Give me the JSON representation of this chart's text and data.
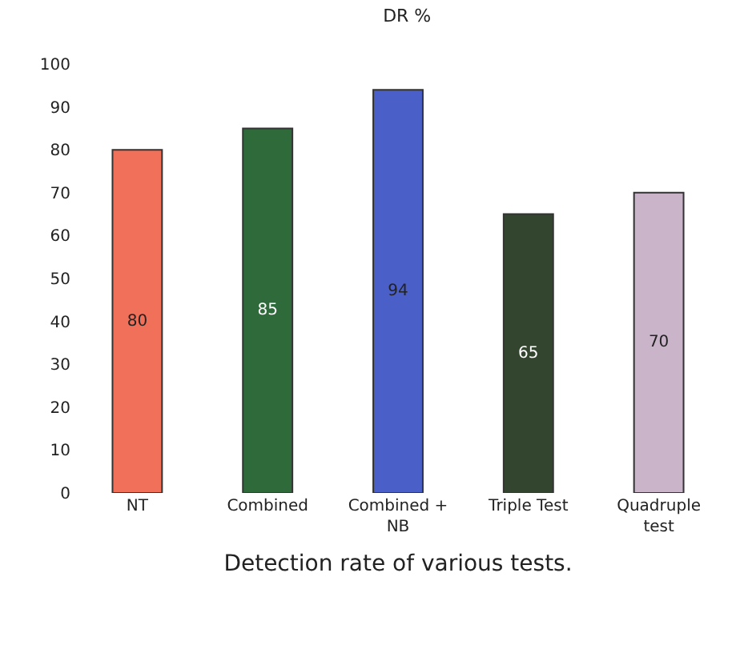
{
  "chart_data": {
    "type": "bar",
    "title": "DR %",
    "xlabel": "Detection rate of various tests.",
    "categories": [
      "NT",
      "Combined",
      "Combined + NB",
      "Triple Test",
      "Quadruple test"
    ],
    "values": [
      80,
      85,
      94,
      65,
      70
    ],
    "colors": [
      "#f0705a",
      "#2f6b3a",
      "#4a5fc8",
      "#34452f",
      "#c9b4c9"
    ],
    "ylim": [
      0,
      100
    ],
    "yticks": [
      0,
      10,
      20,
      30,
      40,
      50,
      60,
      70,
      80,
      90,
      100
    ],
    "grid": false,
    "data_labels": true
  }
}
